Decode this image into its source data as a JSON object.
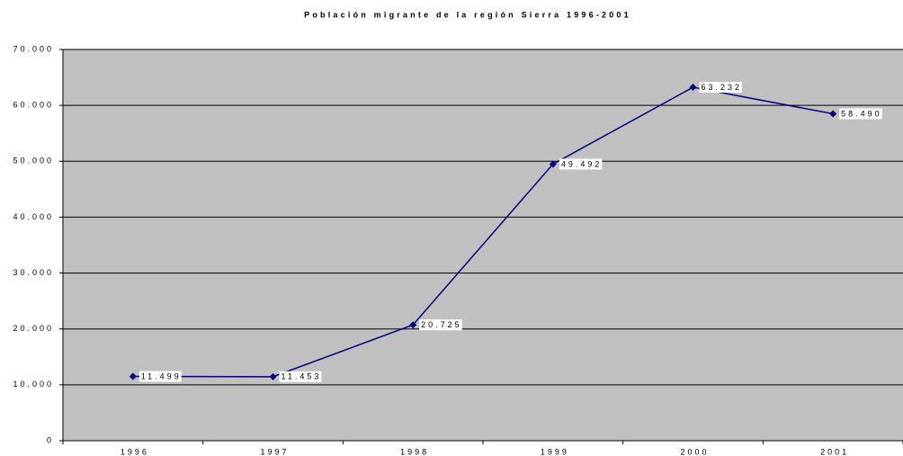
{
  "chart_data": {
    "type": "line",
    "title": "Población migrante de la región Sierra 1996-2001",
    "categories": [
      "1996",
      "1997",
      "1998",
      "1999",
      "2000",
      "2001"
    ],
    "series": [
      {
        "name": "Población migrante",
        "color": "#000080",
        "values": [
          11499,
          11453,
          20725,
          49492,
          63232,
          58490
        ],
        "value_labels": [
          "11.499",
          "11.453",
          "20.725",
          "49.492",
          "63.232",
          "58.490"
        ]
      }
    ],
    "ylim": [
      0,
      70000
    ],
    "yticks": [
      0,
      {
        "value": 10000,
        "label": "10.000"
      },
      {
        "value": 20000,
        "label": "20.000"
      },
      {
        "value": 30000,
        "label": "30.000"
      },
      {
        "value": 40000,
        "label": "40.000"
      },
      {
        "value": 50000,
        "label": "50.000"
      },
      {
        "value": 60000,
        "label": "60.000"
      },
      {
        "value": 70000,
        "label": "70.000"
      }
    ],
    "grid": true,
    "background": "#c0c0c0"
  }
}
